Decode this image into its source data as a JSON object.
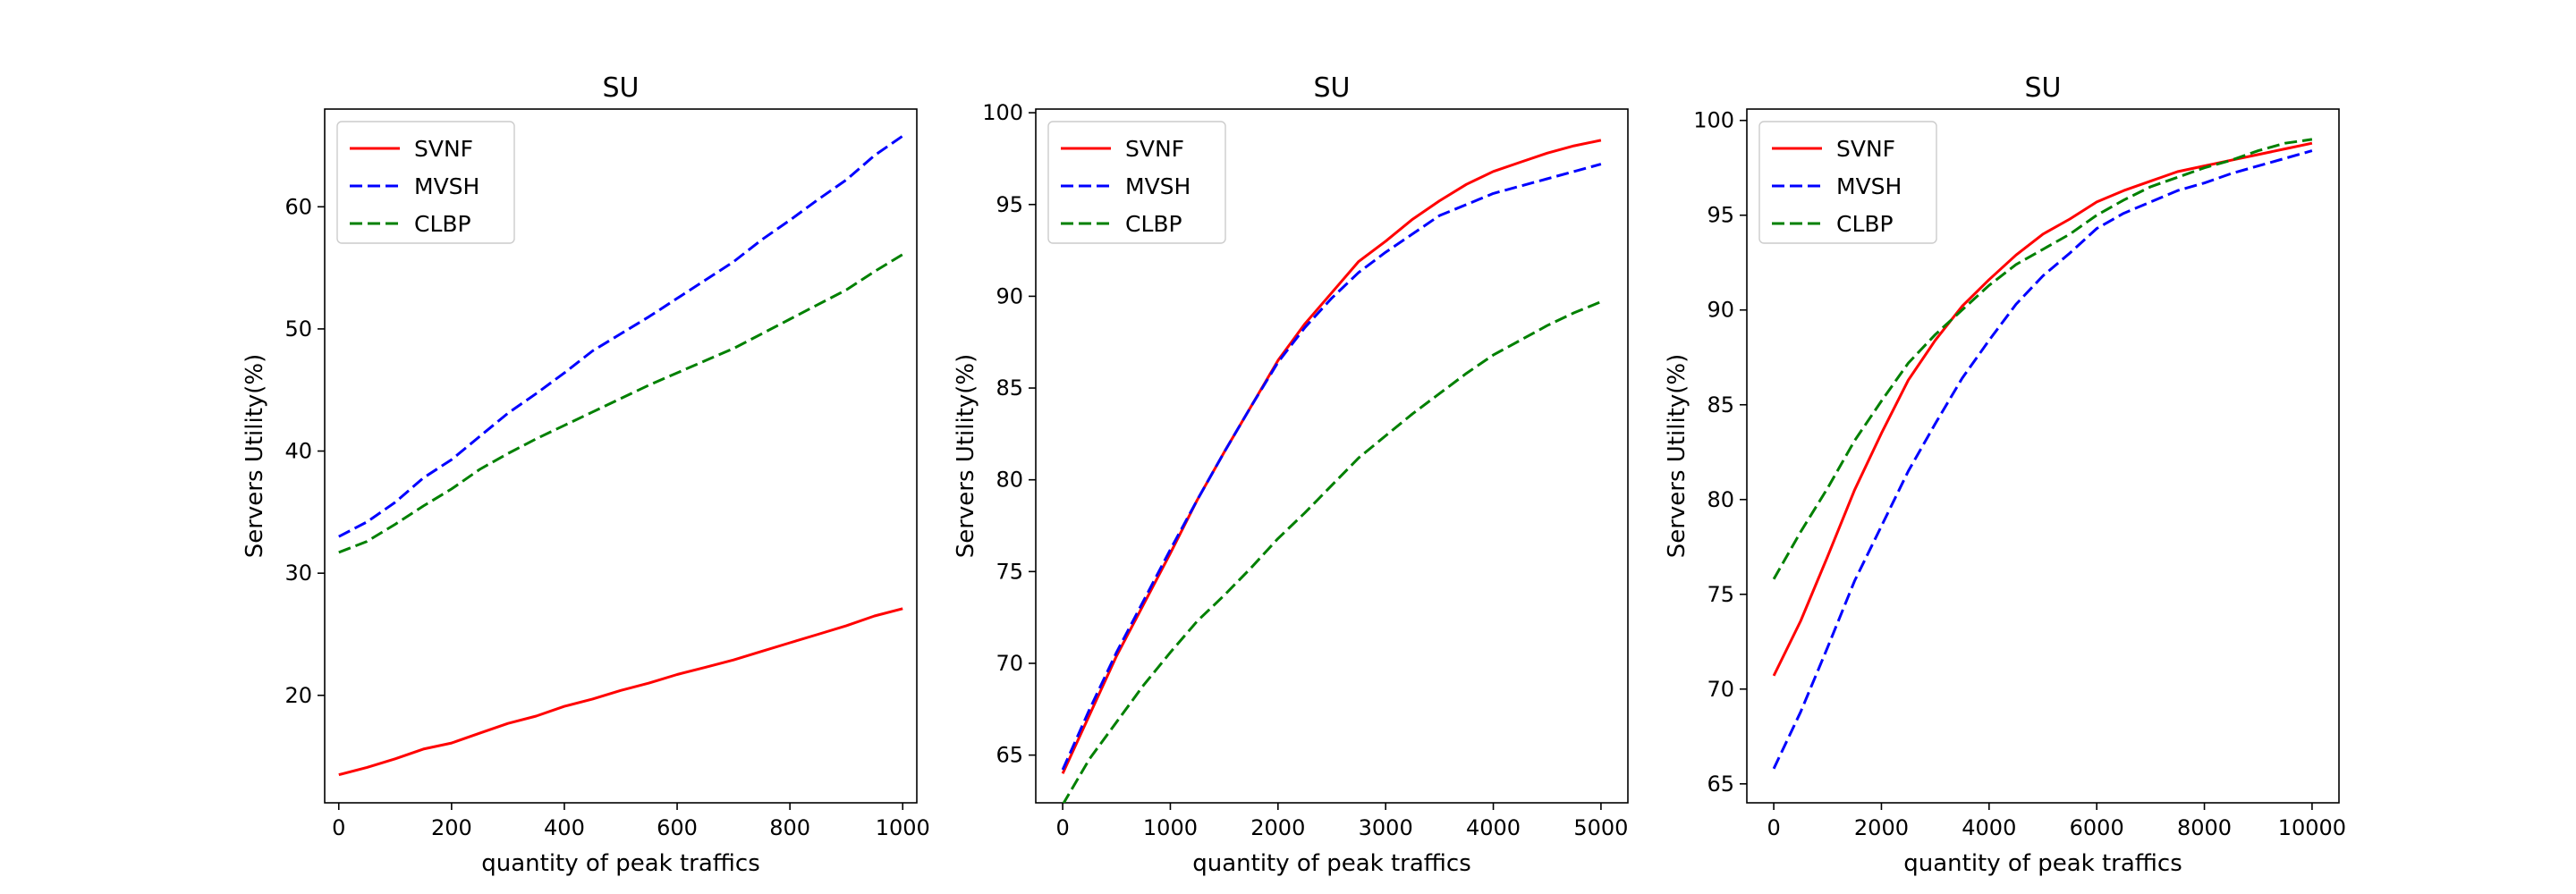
{
  "chart_data": [
    {
      "type": "line",
      "title": "SU",
      "xlabel": "quantity of peak traffics",
      "ylabel": "Servers Utility(%)",
      "xlim": [
        -25,
        1025
      ],
      "ylim": [
        11.2,
        68.0
      ],
      "xticks": [
        0,
        200,
        400,
        600,
        800,
        1000
      ],
      "yticks": [
        20,
        30,
        40,
        50,
        60
      ],
      "legend": "top-left",
      "grid": false,
      "series": [
        {
          "name": "SVNF",
          "color": "#ff0000",
          "dash": "solid",
          "x": [
            0,
            50,
            100,
            150,
            200,
            250,
            300,
            350,
            400,
            450,
            500,
            550,
            600,
            650,
            700,
            750,
            800,
            850,
            900,
            950,
            1000
          ],
          "y": [
            13.5,
            14.1,
            14.8,
            15.6,
            16.1,
            16.9,
            17.7,
            18.3,
            19.1,
            19.7,
            20.4,
            21.0,
            21.7,
            22.3,
            22.9,
            23.6,
            24.3,
            25.0,
            25.7,
            26.5,
            27.1
          ]
        },
        {
          "name": "MVSH",
          "color": "#0000ff",
          "dash": "dashed",
          "x": [
            0,
            50,
            100,
            150,
            200,
            250,
            300,
            350,
            400,
            450,
            500,
            550,
            600,
            650,
            700,
            750,
            800,
            850,
            900,
            950,
            1000
          ],
          "y": [
            33.0,
            34.2,
            35.8,
            37.8,
            39.3,
            41.2,
            43.1,
            44.7,
            46.4,
            48.2,
            49.6,
            51.0,
            52.5,
            54.0,
            55.5,
            57.3,
            58.9,
            60.6,
            62.2,
            64.2,
            65.8
          ]
        },
        {
          "name": "CLBP",
          "color": "#008000",
          "dash": "dashed",
          "x": [
            0,
            50,
            100,
            150,
            200,
            250,
            300,
            350,
            400,
            450,
            500,
            550,
            600,
            650,
            700,
            750,
            800,
            850,
            900,
            950,
            1000
          ],
          "y": [
            31.7,
            32.6,
            34.0,
            35.5,
            36.9,
            38.5,
            39.8,
            41.0,
            42.1,
            43.2,
            44.3,
            45.4,
            46.4,
            47.4,
            48.4,
            49.6,
            50.8,
            52.0,
            53.2,
            54.7,
            56.1
          ]
        }
      ]
    },
    {
      "type": "line",
      "title": "SU",
      "xlabel": "quantity of peak traffics",
      "ylabel": "Servers Utility(%)",
      "xlim": [
        -250,
        5250
      ],
      "ylim": [
        62.4,
        100.2
      ],
      "xticks": [
        0,
        1000,
        2000,
        3000,
        4000,
        5000
      ],
      "yticks": [
        65,
        70,
        75,
        80,
        85,
        90,
        95,
        100
      ],
      "legend": "top-left",
      "grid": false,
      "series": [
        {
          "name": "SVNF",
          "color": "#ff0000",
          "dash": "solid",
          "x": [
            0,
            250,
            500,
            750,
            1000,
            1250,
            1500,
            1750,
            2000,
            2250,
            2500,
            2750,
            3000,
            3250,
            3500,
            3750,
            4000,
            4250,
            4500,
            4750,
            5000
          ],
          "y": [
            64.0,
            67.2,
            70.4,
            73.2,
            76.0,
            78.9,
            81.5,
            84.0,
            86.5,
            88.5,
            90.2,
            91.9,
            93.0,
            94.2,
            95.2,
            96.1,
            96.8,
            97.3,
            97.8,
            98.2,
            98.5
          ]
        },
        {
          "name": "MVSH",
          "color": "#0000ff",
          "dash": "dashed",
          "x": [
            0,
            250,
            500,
            750,
            1000,
            1250,
            1500,
            1750,
            2000,
            2250,
            2500,
            2750,
            3000,
            3250,
            3500,
            3750,
            4000,
            4250,
            4500,
            4750,
            5000
          ],
          "y": [
            64.2,
            67.5,
            70.6,
            73.4,
            76.2,
            78.9,
            81.5,
            84.0,
            86.4,
            88.3,
            89.9,
            91.3,
            92.4,
            93.4,
            94.4,
            95.0,
            95.6,
            96.0,
            96.4,
            96.8,
            97.2
          ]
        },
        {
          "name": "CLBP",
          "color": "#008000",
          "dash": "dashed",
          "x": [
            0,
            250,
            500,
            750,
            1000,
            1250,
            1500,
            1750,
            2000,
            2250,
            2500,
            2750,
            3000,
            3250,
            3500,
            3750,
            4000,
            4250,
            4500,
            4750,
            5000
          ],
          "y": [
            62.3,
            64.8,
            66.8,
            68.8,
            70.6,
            72.3,
            73.7,
            75.2,
            76.8,
            78.2,
            79.7,
            81.2,
            82.4,
            83.6,
            84.7,
            85.8,
            86.8,
            87.6,
            88.4,
            89.1,
            89.7
          ]
        }
      ]
    },
    {
      "type": "line",
      "title": "SU",
      "xlabel": "quantity of peak traffics",
      "ylabel": "Servers Utility(%)",
      "xlim": [
        -500,
        10500
      ],
      "ylim": [
        64.0,
        100.6
      ],
      "xticks": [
        0,
        2000,
        4000,
        6000,
        8000,
        10000
      ],
      "yticks": [
        65,
        70,
        75,
        80,
        85,
        90,
        95,
        100
      ],
      "legend": "top-left",
      "grid": false,
      "series": [
        {
          "name": "SVNF",
          "color": "#ff0000",
          "dash": "solid",
          "x": [
            0,
            500,
            1000,
            1500,
            2000,
            2500,
            3000,
            3500,
            4000,
            4500,
            5000,
            5500,
            6000,
            6500,
            7000,
            7500,
            8000,
            8500,
            9000,
            9500,
            10000
          ],
          "y": [
            70.7,
            73.6,
            77.0,
            80.5,
            83.5,
            86.3,
            88.4,
            90.2,
            91.6,
            92.9,
            94.0,
            94.8,
            95.7,
            96.3,
            96.8,
            97.3,
            97.6,
            97.9,
            98.2,
            98.5,
            98.8
          ]
        },
        {
          "name": "MVSH",
          "color": "#0000ff",
          "dash": "dashed",
          "x": [
            0,
            500,
            1000,
            1500,
            2000,
            2500,
            3000,
            3500,
            4000,
            4500,
            5000,
            5500,
            6000,
            6500,
            7000,
            7500,
            8000,
            8500,
            9000,
            9500,
            10000
          ],
          "y": [
            65.8,
            68.8,
            72.2,
            75.7,
            78.6,
            81.5,
            84.0,
            86.4,
            88.4,
            90.3,
            91.8,
            93.0,
            94.3,
            95.1,
            95.7,
            96.3,
            96.7,
            97.2,
            97.6,
            98.0,
            98.4
          ]
        },
        {
          "name": "CLBP",
          "color": "#008000",
          "dash": "dashed",
          "x": [
            0,
            500,
            1000,
            1500,
            2000,
            2500,
            3000,
            3500,
            4000,
            4500,
            5000,
            5500,
            6000,
            6500,
            7000,
            7500,
            8000,
            8500,
            9000,
            9500,
            10000
          ],
          "y": [
            75.8,
            78.3,
            80.6,
            83.1,
            85.2,
            87.2,
            88.7,
            90.0,
            91.3,
            92.4,
            93.2,
            94.0,
            95.0,
            95.8,
            96.5,
            97.0,
            97.5,
            97.9,
            98.4,
            98.8,
            99.0
          ]
        }
      ]
    }
  ]
}
